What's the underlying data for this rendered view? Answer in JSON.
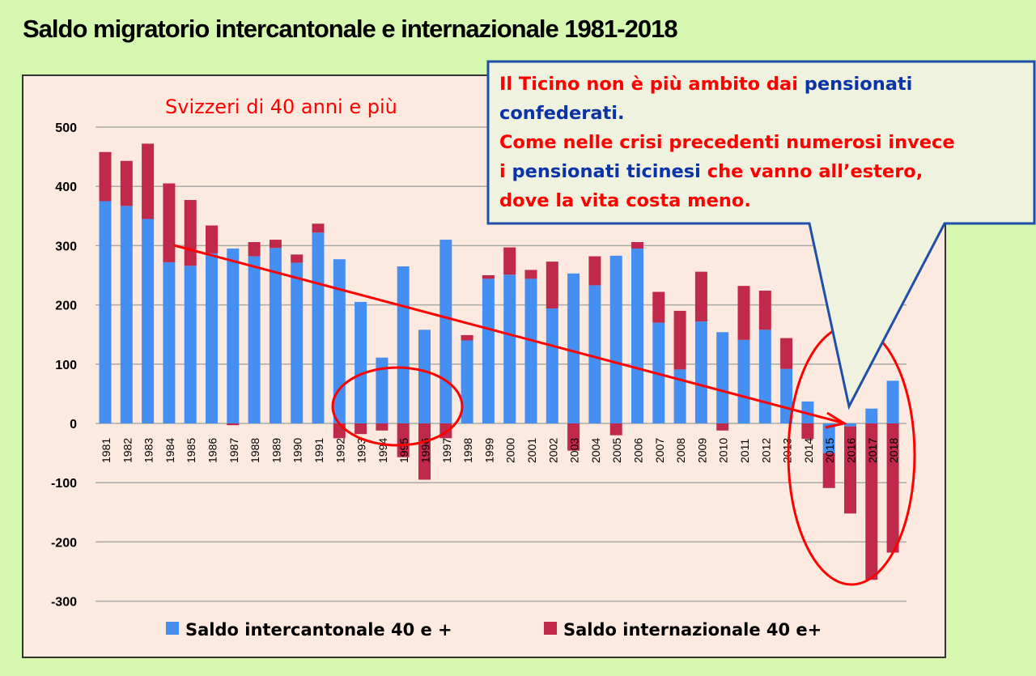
{
  "title": "Saldo migratorio intercantonale e internazionale 1981-2018",
  "colors": {
    "background": "#d5f7b0",
    "plot_bg": "#fce9df",
    "blue": "#468ff2",
    "red": "#c0294a",
    "annotation": "#ff0000",
    "callout_border": "#1f4fa8",
    "callout_bg": "#eef2df",
    "text_blue": "#0b33a8"
  },
  "callout": {
    "lines": [
      [
        {
          "text": "Il Ticino non è più ambito dai ",
          "color": "red"
        },
        {
          "text": "pensionati",
          "color": "blue"
        }
      ],
      [
        {
          "text": "confederati.",
          "color": "blue"
        }
      ],
      [
        {
          "text": "Come nelle crisi precedenti numerosi invece",
          "color": "red"
        }
      ],
      [
        {
          "text": "i ",
          "color": "red"
        },
        {
          "text": "pensionati ticinesi",
          "color": "blue"
        },
        {
          "text": " che vanno all’estero,",
          "color": "red"
        }
      ],
      [
        {
          "text": "dove la vita costa meno.",
          "color": "red"
        }
      ]
    ]
  },
  "chart_data": {
    "type": "bar",
    "stacked": true,
    "title": "Svizzeri di 40 anni e più",
    "xlabel": "",
    "ylabel": "",
    "ylim": [
      -300,
      500
    ],
    "yticks": [
      500,
      400,
      300,
      200,
      100,
      0,
      -100,
      -200,
      -300
    ],
    "grid": true,
    "legend_position": "bottom",
    "categories": [
      "1981",
      "1982",
      "1983",
      "1984",
      "1985",
      "1986",
      "1987",
      "1988",
      "1989",
      "1990",
      "1991",
      "1992",
      "1993",
      "1994",
      "1995",
      "1996",
      "1997",
      "1998",
      "1999",
      "2000",
      "2001",
      "2002",
      "2003",
      "2004",
      "2005",
      "2006",
      "2007",
      "2008",
      "2009",
      "2010",
      "2011",
      "2012",
      "2013",
      "2014",
      "2015",
      "2016",
      "2017",
      "2018"
    ],
    "series": [
      {
        "name": "Saldo intercantonale 40 e +",
        "color": "#468ff2",
        "values": [
          375,
          367,
          345,
          272,
          266,
          287,
          295,
          282,
          296,
          271,
          322,
          277,
          205,
          111,
          265,
          158,
          310,
          140,
          244,
          251,
          244,
          194,
          253,
          233,
          283,
          295,
          170,
          91,
          172,
          154,
          141,
          158,
          92,
          37,
          -50,
          -5,
          25,
          72
        ]
      },
      {
        "name": "Saldo internazionale 40 e+",
        "color": "#c0294a",
        "values": [
          83,
          76,
          127,
          133,
          111,
          47,
          -3,
          24,
          14,
          14,
          15,
          -25,
          -18,
          -12,
          -57,
          -95,
          -25,
          9,
          6,
          46,
          15,
          79,
          -46,
          49,
          -20,
          11,
          52,
          99,
          84,
          -12,
          91,
          66,
          52,
          -26,
          -59,
          -147,
          -264,
          -218
        ]
      }
    ],
    "annotations": [
      {
        "type": "trend-arrow",
        "from": "1984",
        "to": "2016"
      },
      {
        "type": "ellipse",
        "around": [
          "1993",
          "1997"
        ]
      },
      {
        "type": "ellipse",
        "around": [
          "2014",
          "2018"
        ]
      }
    ]
  }
}
